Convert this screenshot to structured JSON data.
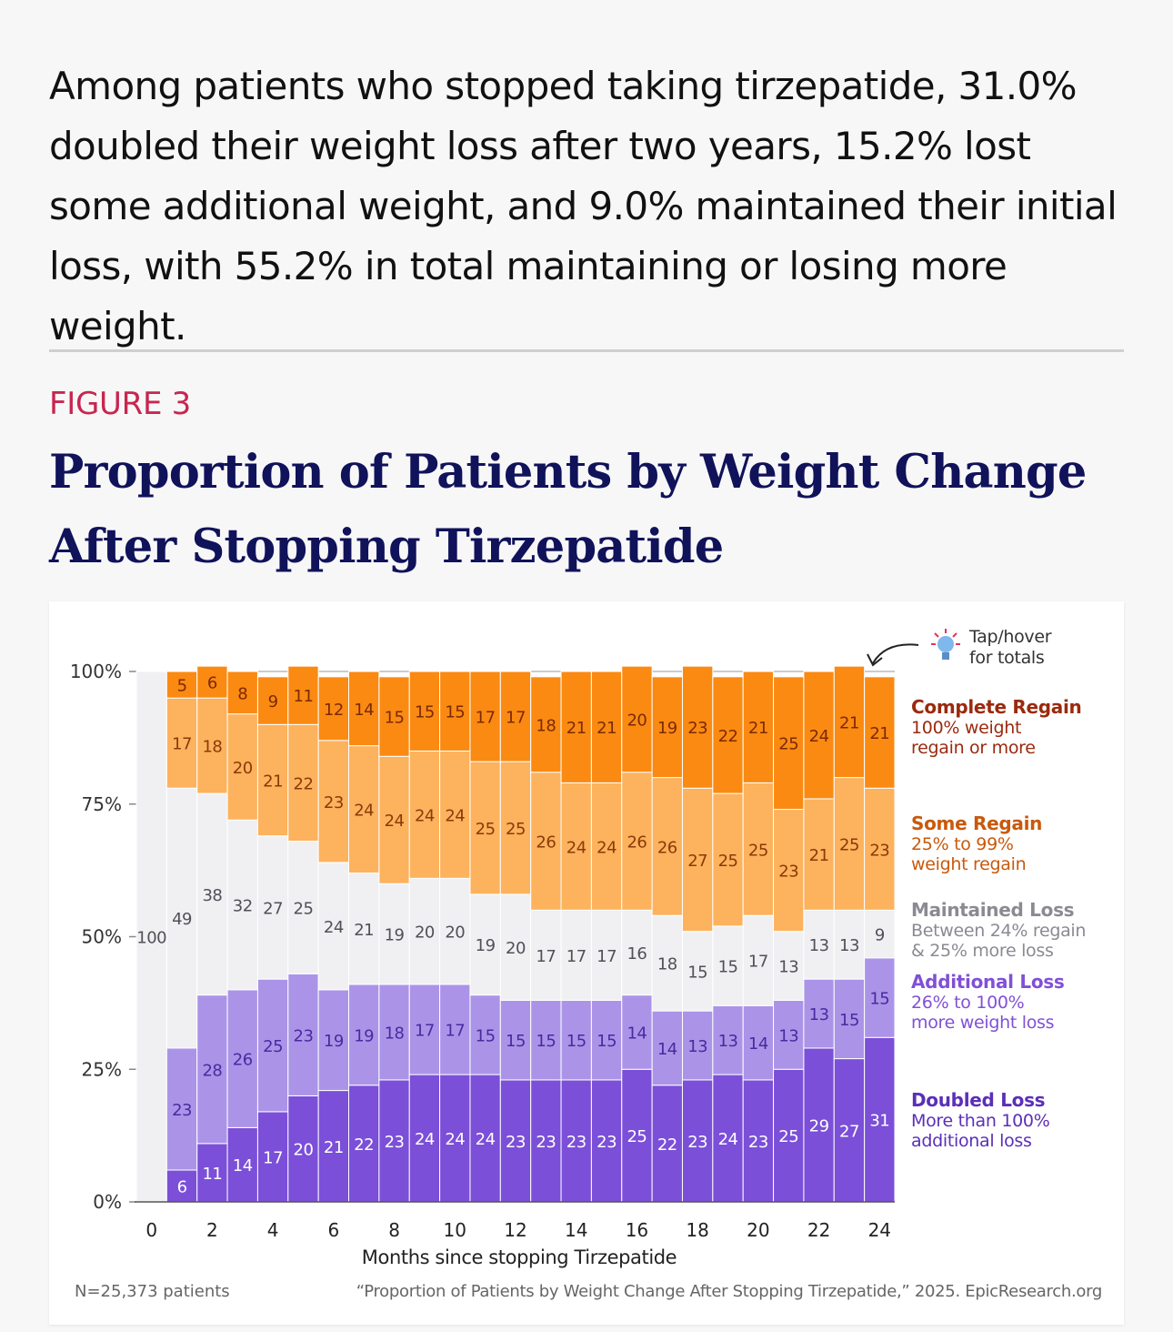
{
  "intro": "Among patients who stopped taking tirzepatide, 31.0% doubled their weight loss after two years, 15.2% lost some additional weight, and 9.0% maintained their initial loss, with 55.2% in total maintaining or losing more weight.",
  "figure": {
    "label": "FIGURE 3",
    "title": "Proportion of Patients by Weight Change After Stopping Tirzepatide"
  },
  "tip": {
    "text": "Tap/hover for totals",
    "line1": "Tap/hover",
    "line2": "for totals"
  },
  "legend": [
    {
      "title": "Complete Regain",
      "line1": "100% weight",
      "line2": "regain or more",
      "color": "#9a2a0e"
    },
    {
      "title": "Some Regain",
      "line1": "25% to 99%",
      "line2": "weight regain",
      "color": "#c8590c"
    },
    {
      "title": "Maintained Loss",
      "line1": "Between 24% regain",
      "line2": "& 25% more loss",
      "color": "#8a8a92"
    },
    {
      "title": "Additional Loss",
      "line1": "26% to 100%",
      "line2": "more weight loss",
      "color": "#8150d6"
    },
    {
      "title": "Doubled Loss",
      "line1": "More than 100%",
      "line2": "additional loss",
      "color": "#5b2fb8"
    }
  ],
  "footer": {
    "left": "N=25,373 patients",
    "right": "“Proportion of Patients by Weight Change After Stopping Tirzepatide,” 2025. EpicResearch.org"
  },
  "chart_data": {
    "type": "bar",
    "stacked": true,
    "xlabel": "Months since stopping Tirzepatide",
    "ylabel": "",
    "ylim": [
      0,
      100
    ],
    "yticks": [
      "0%",
      "25%",
      "50%",
      "75%",
      "100%"
    ],
    "xticks": [
      "0",
      "2",
      "4",
      "6",
      "8",
      "10",
      "12",
      "14",
      "16",
      "18",
      "20",
      "22",
      "24"
    ],
    "x": [
      0,
      1,
      2,
      3,
      4,
      5,
      6,
      7,
      8,
      9,
      10,
      11,
      12,
      13,
      14,
      15,
      16,
      17,
      18,
      19,
      20,
      21,
      22,
      23,
      24
    ],
    "series": [
      {
        "name": "Doubled Loss",
        "color": "#7b4fd8",
        "label_color": "#ffffff",
        "values": [
          0,
          6,
          11,
          14,
          17,
          20,
          21,
          22,
          23,
          24,
          24,
          24,
          23,
          23,
          23,
          23,
          25,
          22,
          23,
          24,
          23,
          25,
          29,
          27,
          31
        ]
      },
      {
        "name": "Additional Loss",
        "color": "#ab94e8",
        "label_color": "#4a2aa0",
        "values": [
          0,
          23,
          28,
          26,
          25,
          23,
          19,
          19,
          18,
          17,
          17,
          15,
          15,
          15,
          15,
          15,
          14,
          14,
          13,
          13,
          14,
          13,
          13,
          15,
          15
        ]
      },
      {
        "name": "Maintained Loss",
        "color": "#f0f0f3",
        "label_color": "#505058",
        "values": [
          100,
          49,
          38,
          32,
          27,
          25,
          24,
          21,
          19,
          20,
          20,
          19,
          20,
          17,
          17,
          17,
          16,
          18,
          15,
          15,
          17,
          13,
          13,
          13,
          9
        ]
      },
      {
        "name": "Some Regain",
        "color": "#fdb25d",
        "label_color": "#8a3a08",
        "values": [
          0,
          17,
          18,
          20,
          21,
          22,
          23,
          24,
          24,
          24,
          24,
          25,
          25,
          26,
          24,
          24,
          26,
          26,
          27,
          25,
          25,
          23,
          21,
          25,
          23
        ]
      },
      {
        "name": "Complete Regain",
        "color": "#fb8a12",
        "label_color": "#7a2a04",
        "values": [
          0,
          5,
          6,
          8,
          9,
          11,
          12,
          14,
          15,
          15,
          15,
          17,
          17,
          18,
          21,
          21,
          20,
          19,
          23,
          22,
          21,
          25,
          24,
          21,
          21
        ]
      }
    ]
  }
}
